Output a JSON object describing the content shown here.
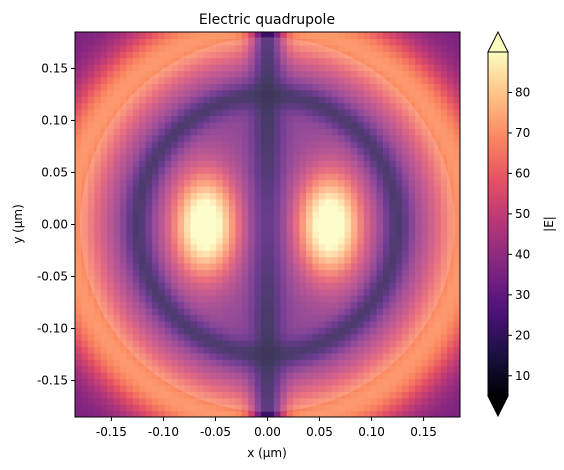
{
  "chart_data": {
    "type": "heatmap",
    "title": "Electric quadrupole",
    "xlabel": "x (µm)",
    "ylabel": "y (µm)",
    "xlim": [
      -0.185,
      0.185
    ],
    "ylim": [
      -0.185,
      0.185
    ],
    "x_ticks": [
      -0.15,
      -0.1,
      -0.05,
      0.0,
      0.05,
      0.1,
      0.15
    ],
    "x_tick_labels": [
      "-0.15",
      "-0.10",
      "-0.05",
      "0.00",
      "0.05",
      "0.10",
      "0.15"
    ],
    "y_ticks": [
      -0.15,
      -0.1,
      -0.05,
      0.0,
      0.05,
      0.1,
      0.15
    ],
    "y_tick_labels": [
      "-0.15",
      "-0.10",
      "-0.05",
      "0.00",
      "0.05",
      "0.10",
      "0.15"
    ],
    "colorbar": {
      "label": "|E|",
      "min": 5,
      "max": 90,
      "ticks": [
        10,
        20,
        30,
        40,
        50,
        60,
        70,
        80
      ],
      "tick_labels": [
        "10",
        "20",
        "30",
        "40",
        "50",
        "60",
        "70",
        "80"
      ],
      "extend": "both",
      "colormap": "magma"
    },
    "field": {
      "grid": [
        60,
        60
      ],
      "hotspots": [
        {
          "x": -0.06,
          "y": 0.0,
          "value": 90
        },
        {
          "x": 0.06,
          "y": 0.0,
          "value": 90
        }
      ],
      "node_ring_radius": 0.125,
      "center_line_min": 12,
      "corner_value": 35,
      "edge_peak_value": 72
    },
    "overlay": {
      "shape": "circle",
      "radius": 0.18,
      "color": "#ffffff",
      "opacity": 0.18
    }
  }
}
